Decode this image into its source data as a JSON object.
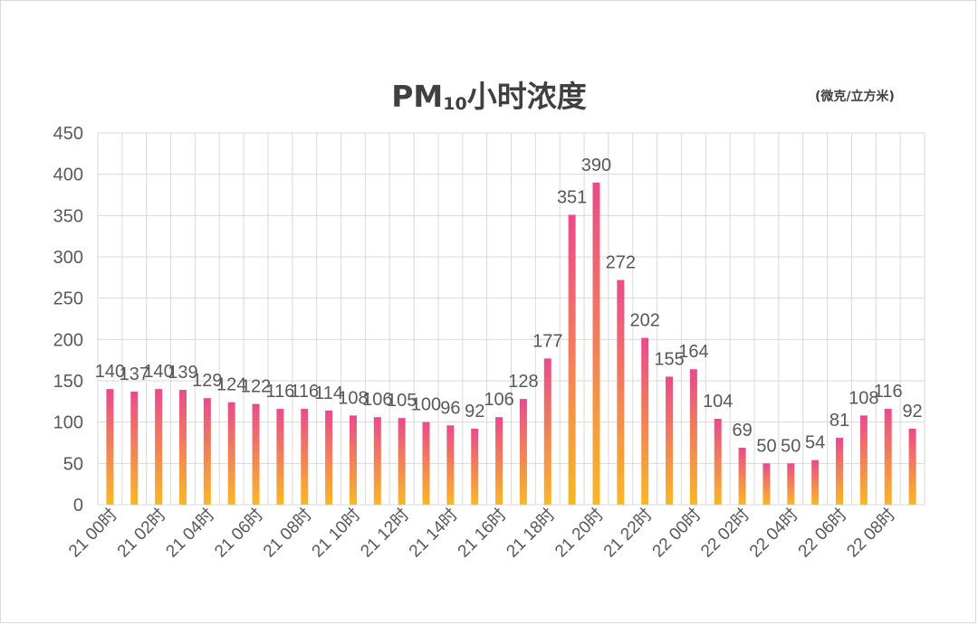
{
  "title_main": "PM",
  "title_sub": "10",
  "title_rest": "小时浓度",
  "unit": "(微克/立方米)",
  "chart_data": {
    "type": "bar",
    "ylim": [
      0,
      450
    ],
    "yticks": [
      0,
      50,
      100,
      150,
      200,
      250,
      300,
      350,
      400,
      450
    ],
    "grid": true,
    "x_tick_labels": [
      "21 00时",
      "21 02时",
      "21 04时",
      "21 06时",
      "21 08时",
      "21 10时",
      "21 12时",
      "21 14时",
      "21 16时",
      "21 18时",
      "21 20时",
      "21 22时",
      "22 00时",
      "22 02时",
      "22 04时",
      "22 06时",
      "22 08时"
    ],
    "values": [
      140,
      137,
      140,
      139,
      129,
      124,
      122,
      116,
      116,
      114,
      108,
      106,
      105,
      100,
      96,
      92,
      106,
      128,
      177,
      351,
      390,
      272,
      202,
      155,
      164,
      104,
      69,
      50,
      50,
      54,
      81,
      108,
      116,
      92
    ],
    "colors": {
      "bar_top": "#ea4a8c",
      "bar_bottom": "#f9b825",
      "grid": "#d9d9d9"
    }
  }
}
